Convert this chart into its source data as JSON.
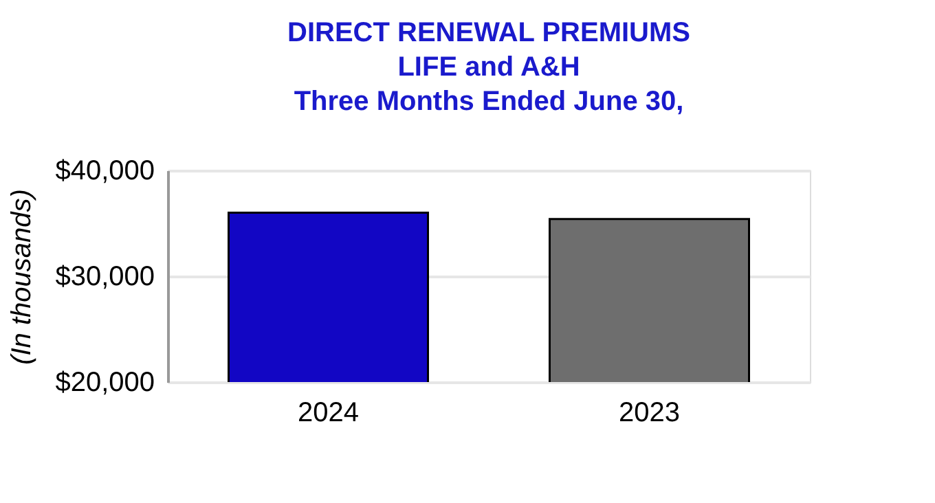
{
  "chart_data": {
    "type": "bar",
    "title": [
      "DIRECT RENEWAL PREMIUMS",
      "LIFE and A&H",
      "Three Months Ended June 30,"
    ],
    "ylabel": "(In thousands)",
    "categories": [
      "2024",
      "2023"
    ],
    "values": [
      36000,
      35400
    ],
    "colors": [
      "#1206c4",
      "#6e6e6e"
    ],
    "ylim": [
      20000,
      40000
    ],
    "yticks": [
      {
        "value": 20000,
        "label": "$20,000"
      },
      {
        "value": 30000,
        "label": "$30,000"
      },
      {
        "value": 40000,
        "label": "$40,000"
      }
    ],
    "grid": "y"
  }
}
